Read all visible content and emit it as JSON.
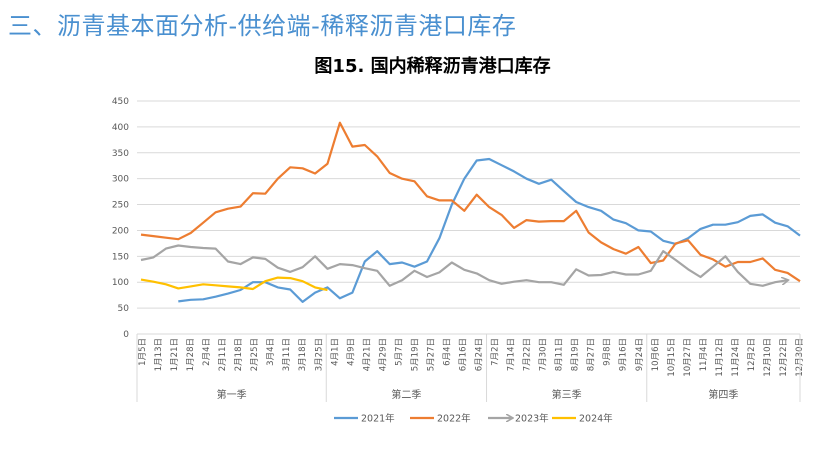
{
  "header": {
    "title": "三、沥青基本面分析-供给端-稀释沥青港口库存"
  },
  "chart_data": {
    "type": "line",
    "title": "图15. 国内稀释沥青港口库存",
    "xlabel": "",
    "ylabel": "",
    "ylim": [
      0,
      450
    ],
    "yticks": [
      0,
      50,
      100,
      150,
      200,
      250,
      300,
      350,
      400,
      450
    ],
    "grid": true,
    "legend_position": "bottom",
    "x_labels": [
      "1月5日",
      "1月13日",
      "1月21日",
      "1月28日",
      "2月4日",
      "2月11日",
      "2月18日",
      "2月25日",
      "3月4日",
      "3月11日",
      "3月18日",
      "3月25日",
      "4月1日",
      "4月9日",
      "4月21日",
      "4月29日",
      "5月7日",
      "5月19日",
      "5月27日",
      "6月4日",
      "6月16日",
      "6月24日",
      "7月2日",
      "7月14日",
      "7月22日",
      "7月30日",
      "8月11日",
      "8月19日",
      "8月27日",
      "9月8日",
      "9月16日",
      "9月24日",
      "10月6日",
      "10月15日",
      "10月27日",
      "11月4日",
      "11月12日",
      "11月24日",
      "12月2日",
      "12月10日",
      "12月22日",
      "12月30日"
    ],
    "quarters": [
      {
        "label": "第一季",
        "label_count": 12
      },
      {
        "label": "第二季",
        "label_count": 10
      },
      {
        "label": "第三季",
        "label_count": 10
      },
      {
        "label": "第四季",
        "label_count": 10
      }
    ],
    "x_week_count": 54,
    "series": [
      {
        "name": "2021年",
        "color": "#5b9bd5",
        "values": [
          null,
          null,
          null,
          63,
          66,
          67,
          72,
          78,
          85,
          100,
          100,
          90,
          86,
          62,
          80,
          90,
          69,
          80,
          140,
          160,
          135,
          138,
          130,
          140,
          185,
          250,
          300,
          335,
          338,
          326,
          314,
          300,
          290,
          298,
          276,
          255,
          245,
          238,
          221,
          214,
          200,
          198,
          180,
          174,
          185,
          203,
          211,
          211,
          216,
          228,
          231,
          215,
          208,
          190
        ]
      },
      {
        "name": "2022年",
        "color": "#ed7d31",
        "values": [
          192,
          189,
          186,
          183,
          195,
          215,
          235,
          242,
          246,
          272,
          271,
          300,
          322,
          320,
          310,
          329,
          408,
          362,
          365,
          343,
          311,
          300,
          295,
          266,
          258,
          258,
          238,
          269,
          245,
          230,
          205,
          220,
          217,
          218,
          218,
          238,
          196,
          177,
          164,
          155,
          168,
          137,
          142,
          175,
          181,
          153,
          144,
          130,
          139,
          139,
          146,
          124,
          118,
          102
        ]
      },
      {
        "name": "2023年",
        "color": "#a5a5a5",
        "arrow": true,
        "values": [
          143,
          148,
          165,
          171,
          168,
          166,
          165,
          140,
          135,
          148,
          145,
          128,
          120,
          129,
          150,
          126,
          135,
          133,
          127,
          122,
          93,
          104,
          122,
          110,
          119,
          138,
          124,
          117,
          104,
          97,
          101,
          104,
          100,
          100,
          95,
          125,
          113,
          114,
          120,
          115,
          115,
          122,
          160,
          143,
          125,
          110,
          130,
          150,
          120,
          97,
          93,
          100,
          104,
          null
        ]
      },
      {
        "name": "2024年",
        "color": "#ffc000",
        "values": [
          105,
          101,
          96,
          88,
          92,
          96,
          94,
          92,
          90,
          87,
          102,
          109,
          108,
          102,
          90,
          85
        ]
      }
    ]
  }
}
